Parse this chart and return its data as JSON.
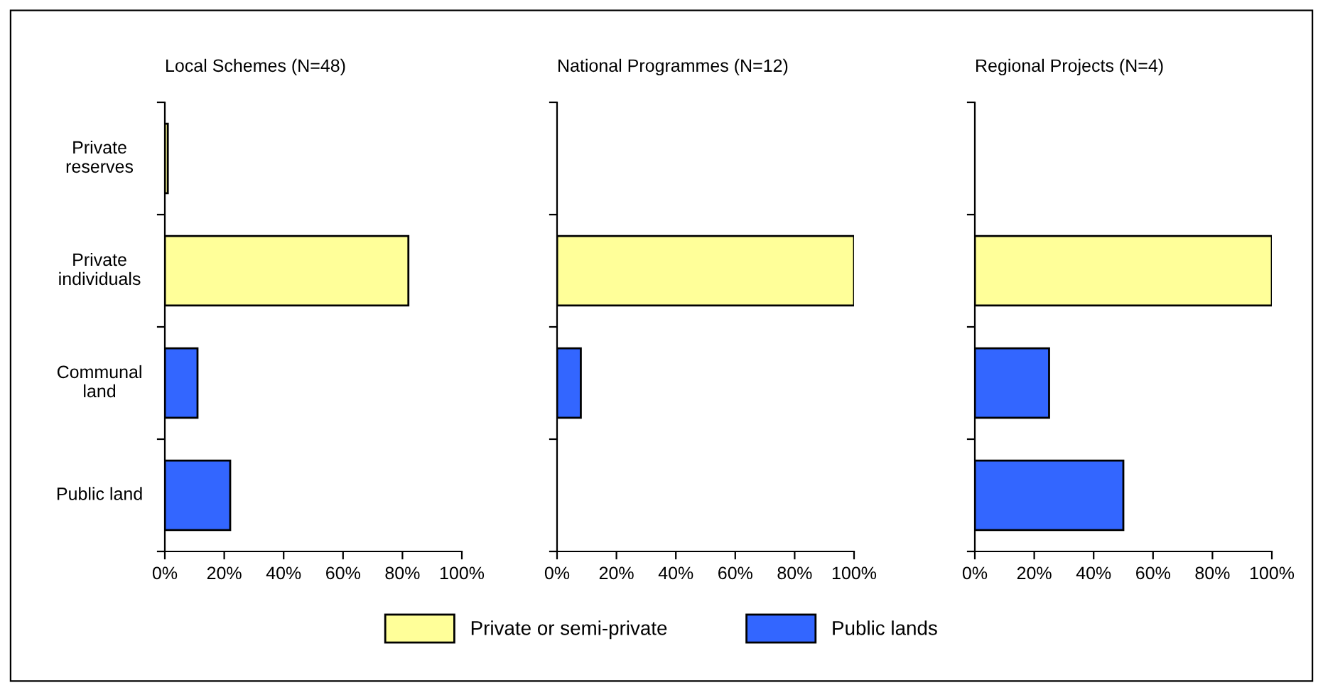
{
  "chart_data": [
    {
      "type": "bar",
      "orientation": "horizontal",
      "title": "Local Schemes (N=48)",
      "categories": [
        "Private\nreserves",
        "Private\nindividuals",
        "Communal\nland",
        "Public land"
      ],
      "series": [
        {
          "name": "Private or semi-private",
          "color": "#ffff99",
          "values": [
            1,
            82,
            null,
            null
          ]
        },
        {
          "name": "Public lands",
          "color": "#3366ff",
          "values": [
            null,
            null,
            11,
            22
          ]
        }
      ],
      "xlim": [
        0,
        100
      ],
      "xticks": [
        {
          "value": 0,
          "label": "0%"
        },
        {
          "value": 20,
          "label": "20%"
        },
        {
          "value": 40,
          "label": "40%"
        },
        {
          "value": 60,
          "label": "60%"
        },
        {
          "value": 80,
          "label": "80%"
        },
        {
          "value": 100,
          "label": "100%"
        }
      ],
      "legend": "bottom"
    },
    {
      "type": "bar",
      "orientation": "horizontal",
      "title": "National Programmes (N=12)",
      "categories": [
        null,
        null,
        null,
        null
      ],
      "series": [
        {
          "color": "#ffff99",
          "values": [
            null,
            100,
            null,
            null
          ]
        },
        {
          "color": "#3366ff",
          "values": [
            null,
            null,
            8,
            null
          ]
        }
      ],
      "xlim": [
        0,
        100
      ],
      "xticks": [
        {
          "value": 0,
          "label": "0%"
        },
        {
          "value": 20,
          "label": "20%"
        },
        {
          "value": 40,
          "label": "40%"
        },
        {
          "value": 60,
          "label": "60%"
        },
        {
          "value": 80,
          "label": "80%"
        },
        {
          "value": 100,
          "label": "100%"
        }
      ]
    },
    {
      "type": "bar",
      "orientation": "horizontal",
      "title": "Regional Projects (N=4)",
      "categories": [
        null,
        null,
        null,
        null
      ],
      "series": [
        {
          "color": "#ffff99",
          "values": [
            null,
            100,
            null,
            null
          ]
        },
        {
          "color": "#3366ff",
          "values": [
            null,
            null,
            25,
            50
          ]
        }
      ],
      "xlim": [
        0,
        100
      ],
      "xticks": [
        {
          "value": 0,
          "label": "0%"
        },
        {
          "value": 20,
          "label": "20%"
        },
        {
          "value": 40,
          "label": "40%"
        },
        {
          "value": 60,
          "label": "60%"
        },
        {
          "value": 80,
          "label": "80%"
        },
        {
          "value": 100,
          "label": "100%"
        }
      ]
    }
  ]
}
